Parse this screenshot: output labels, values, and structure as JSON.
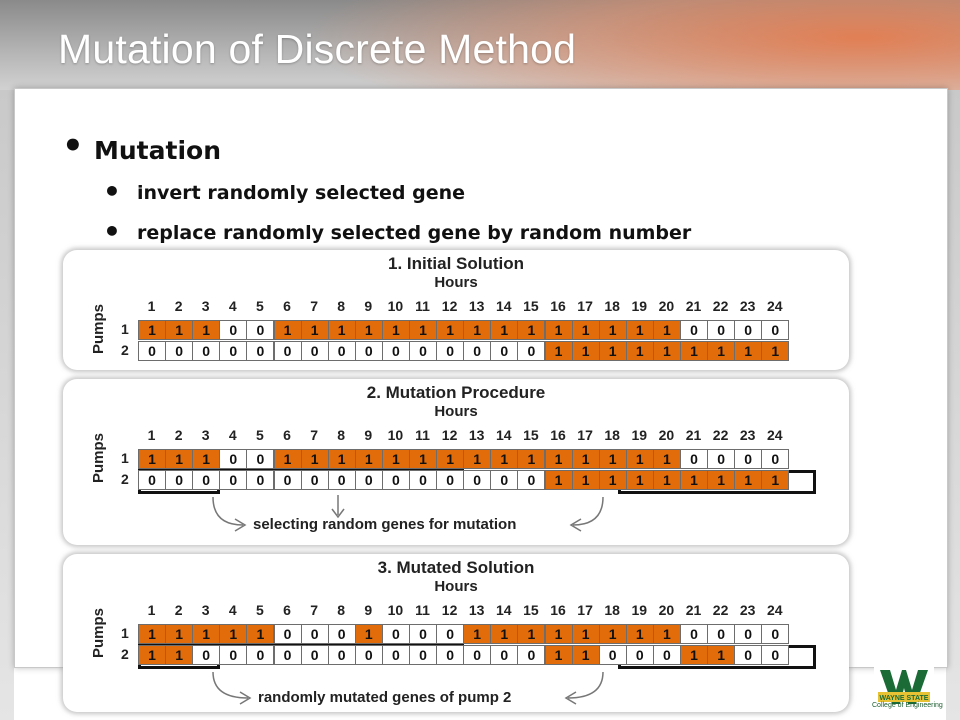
{
  "slide": {
    "title": "Mutation of Discrete Method",
    "bullet_main": "Mutation",
    "sub_bullets": [
      "invert randomly selected gene",
      "replace randomly selected gene by random number"
    ]
  },
  "figure": {
    "hours_label": "Hours",
    "pumps_label": "Pumps",
    "hours": [
      "1",
      "2",
      "3",
      "4",
      "5",
      "6",
      "7",
      "8",
      "9",
      "10",
      "11",
      "12",
      "13",
      "14",
      "15",
      "16",
      "17",
      "18",
      "19",
      "20",
      "21",
      "22",
      "23",
      "24"
    ],
    "row_labels": [
      "1",
      "2"
    ],
    "panels": [
      {
        "title": "1. Initial Solution",
        "pump1": [
          1,
          1,
          1,
          0,
          0,
          1,
          1,
          1,
          1,
          1,
          1,
          1,
          1,
          1,
          1,
          1,
          1,
          1,
          1,
          1,
          0,
          0,
          0,
          0
        ],
        "pump2": [
          0,
          0,
          0,
          0,
          0,
          0,
          0,
          0,
          0,
          0,
          0,
          0,
          0,
          0,
          0,
          1,
          1,
          1,
          1,
          1,
          1,
          1,
          1,
          1
        ],
        "caption": ""
      },
      {
        "title": "2. Mutation Procedure",
        "pump1": [
          1,
          1,
          1,
          0,
          0,
          1,
          1,
          1,
          1,
          1,
          1,
          1,
          1,
          1,
          1,
          1,
          1,
          1,
          1,
          1,
          0,
          0,
          0,
          0
        ],
        "pump2": [
          0,
          0,
          0,
          0,
          0,
          0,
          0,
          0,
          0,
          0,
          0,
          0,
          0,
          0,
          0,
          1,
          1,
          1,
          1,
          1,
          1,
          1,
          1,
          1
        ],
        "caption": "selecting random genes for mutation"
      },
      {
        "title": "3. Mutated Solution",
        "pump1": [
          1,
          1,
          1,
          1,
          1,
          0,
          0,
          0,
          1,
          0,
          0,
          0,
          1,
          1,
          1,
          1,
          1,
          1,
          1,
          1,
          0,
          0,
          0,
          0
        ],
        "pump2": [
          1,
          1,
          0,
          0,
          0,
          0,
          0,
          0,
          0,
          0,
          0,
          0,
          0,
          0,
          0,
          1,
          1,
          0,
          0,
          0,
          1,
          1,
          0,
          0
        ],
        "caption": "randomly mutated genes of pump 2"
      }
    ]
  },
  "logo": {
    "name": "WAYNE STATE",
    "subtitle": "College of Engineering"
  },
  "colors": {
    "gene_on": "#e36c0a",
    "gene_off": "#ffffff"
  }
}
